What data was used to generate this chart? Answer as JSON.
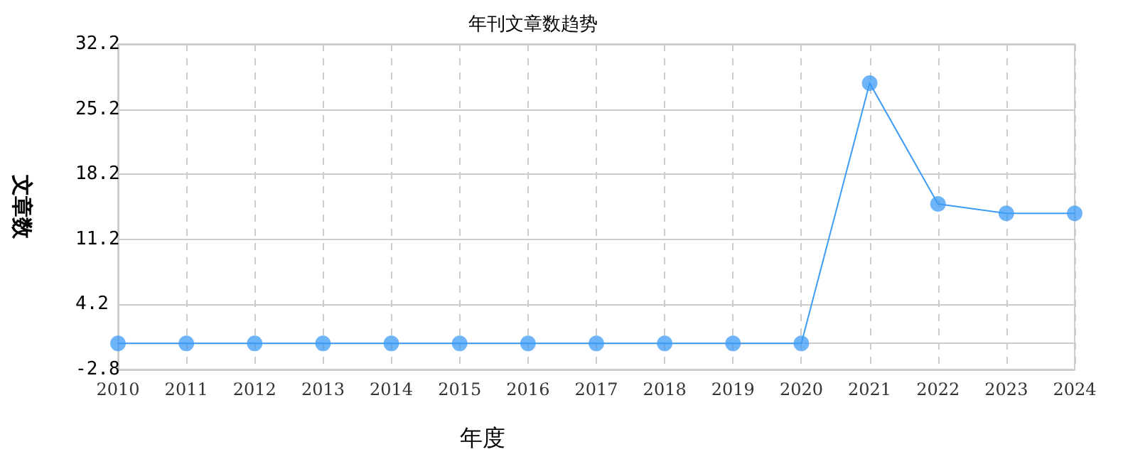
{
  "chart_data": {
    "type": "line",
    "title": "年刊文章数趋势",
    "xlabel": "年度",
    "ylabel": "文章数",
    "categories": [
      "2010",
      "2011",
      "2012",
      "2013",
      "2014",
      "2015",
      "2016",
      "2017",
      "2018",
      "2019",
      "2020",
      "2021",
      "2022",
      "2023",
      "2024"
    ],
    "series": [
      {
        "color": "#3d9bf5",
        "values": [
          0,
          0,
          0,
          0,
          0,
          0,
          0,
          0,
          0,
          0,
          0,
          28,
          15,
          14,
          14
        ]
      }
    ],
    "ylim": [
      -2.8,
      32.2
    ],
    "yticks": [
      -2.8,
      4.2,
      11.2,
      18.2,
      25.2,
      32.2
    ],
    "grid": true,
    "marker": "circle",
    "line_style": "solid"
  }
}
